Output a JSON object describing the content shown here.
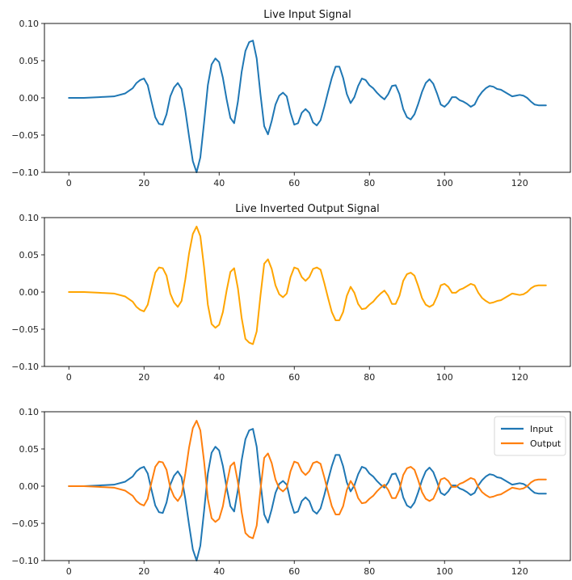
{
  "chart_data": [
    {
      "type": "line",
      "title": "Live Input Signal",
      "xlabel": "",
      "ylabel": "",
      "xlim": [
        -6.5,
        133.5
      ],
      "ylim": [
        -0.1,
        0.1
      ],
      "xticks": [
        0,
        20,
        40,
        60,
        80,
        100,
        120
      ],
      "yticks": [
        0.1,
        0.05,
        0.0,
        -0.05,
        -0.1
      ],
      "xtick_labels": [
        "0",
        "20",
        "40",
        "60",
        "80",
        "100",
        "120"
      ],
      "ytick_labels": [
        "0.10",
        "0.05",
        "0.00",
        "−0.05",
        "−0.10"
      ],
      "grid": false,
      "legend": null,
      "series": [
        {
          "color": "#1f77b4",
          "x": [
            0,
            4,
            8,
            12,
            15,
            17,
            18,
            19,
            20,
            21,
            22,
            23,
            24,
            25,
            26,
            27,
            28,
            29,
            30,
            31,
            32,
            33,
            34,
            35,
            36,
            37,
            38,
            39,
            40,
            41,
            42,
            43,
            44,
            45,
            46,
            47,
            48,
            49,
            50,
            51,
            52,
            53,
            54,
            55,
            56,
            57,
            58,
            59,
            60,
            61,
            62,
            63,
            64,
            65,
            66,
            67,
            68,
            69,
            70,
            71,
            72,
            73,
            74,
            75,
            76,
            77,
            78,
            79,
            80,
            81,
            82,
            83,
            84,
            85,
            86,
            87,
            88,
            89,
            90,
            91,
            92,
            93,
            94,
            95,
            96,
            97,
            98,
            99,
            100,
            101,
            102,
            103,
            104,
            105,
            106,
            107,
            108,
            109,
            110,
            111,
            112,
            113,
            114,
            115,
            116,
            117,
            118,
            119,
            120,
            121,
            122,
            123,
            124,
            125,
            126,
            127
          ],
          "y": [
            0.0,
            0.0,
            0.001,
            0.002,
            0.006,
            0.013,
            0.02,
            0.024,
            0.026,
            0.017,
            -0.005,
            -0.026,
            -0.035,
            -0.036,
            -0.022,
            0.002,
            0.014,
            0.02,
            0.012,
            -0.017,
            -0.052,
            -0.085,
            -0.1,
            -0.08,
            -0.033,
            0.017,
            0.045,
            0.053,
            0.048,
            0.027,
            -0.002,
            -0.027,
            -0.034,
            -0.005,
            0.035,
            0.063,
            0.075,
            0.077,
            0.053,
            0.005,
            -0.038,
            -0.049,
            -0.031,
            -0.009,
            0.003,
            0.007,
            0.002,
            -0.02,
            -0.036,
            -0.034,
            -0.02,
            -0.015,
            -0.02,
            -0.033,
            -0.037,
            -0.03,
            -0.012,
            0.008,
            0.027,
            0.042,
            0.042,
            0.027,
            0.005,
            -0.007,
            0.001,
            0.016,
            0.026,
            0.024,
            0.017,
            0.013,
            0.007,
            0.002,
            -0.002,
            0.005,
            0.016,
            0.017,
            0.005,
            -0.015,
            -0.026,
            -0.029,
            -0.022,
            -0.008,
            0.008,
            0.02,
            0.025,
            0.019,
            0.006,
            -0.009,
            -0.012,
            -0.007,
            0.001,
            0.001,
            -0.003,
            -0.005,
            -0.008,
            -0.012,
            -0.009,
            0.001,
            0.008,
            0.013,
            0.016,
            0.015,
            0.012,
            0.011,
            0.008,
            0.005,
            0.002,
            0.003,
            0.004,
            0.003,
            0.0,
            -0.005,
            -0.009,
            -0.01,
            -0.01,
            -0.01
          ]
        }
      ]
    },
    {
      "type": "line",
      "title": "Live Inverted Output Signal",
      "xlabel": "",
      "ylabel": "",
      "xlim": [
        -6.5,
        133.5
      ],
      "ylim": [
        -0.1,
        0.1
      ],
      "xticks": [
        0,
        20,
        40,
        60,
        80,
        100,
        120
      ],
      "yticks": [
        0.1,
        0.05,
        0.0,
        -0.05,
        -0.1
      ],
      "xtick_labels": [
        "0",
        "20",
        "40",
        "60",
        "80",
        "100",
        "120"
      ],
      "ytick_labels": [
        "0.10",
        "0.05",
        "0.00",
        "−0.05",
        "−0.10"
      ],
      "grid": false,
      "legend": null,
      "series": [
        {
          "color": "#ffa500",
          "x": [
            0,
            4,
            8,
            12,
            15,
            17,
            18,
            19,
            20,
            21,
            22,
            23,
            24,
            25,
            26,
            27,
            28,
            29,
            30,
            31,
            32,
            33,
            34,
            35,
            36,
            37,
            38,
            39,
            40,
            41,
            42,
            43,
            44,
            45,
            46,
            47,
            48,
            49,
            50,
            51,
            52,
            53,
            54,
            55,
            56,
            57,
            58,
            59,
            60,
            61,
            62,
            63,
            64,
            65,
            66,
            67,
            68,
            69,
            70,
            71,
            72,
            73,
            74,
            75,
            76,
            77,
            78,
            79,
            80,
            81,
            82,
            83,
            84,
            85,
            86,
            87,
            88,
            89,
            90,
            91,
            92,
            93,
            94,
            95,
            96,
            97,
            98,
            99,
            100,
            101,
            102,
            103,
            104,
            105,
            106,
            107,
            108,
            109,
            110,
            111,
            112,
            113,
            114,
            115,
            116,
            117,
            118,
            119,
            120,
            121,
            122,
            123,
            124,
            125,
            126,
            127
          ],
          "y": [
            0.0,
            0.0,
            -0.001,
            -0.002,
            -0.006,
            -0.013,
            -0.02,
            -0.024,
            -0.026,
            -0.017,
            0.005,
            0.026,
            0.033,
            0.032,
            0.022,
            -0.002,
            -0.014,
            -0.02,
            -0.012,
            0.017,
            0.052,
            0.078,
            0.088,
            0.075,
            0.033,
            -0.017,
            -0.043,
            -0.048,
            -0.044,
            -0.027,
            0.002,
            0.027,
            0.032,
            0.005,
            -0.035,
            -0.063,
            -0.068,
            -0.07,
            -0.053,
            -0.005,
            0.038,
            0.044,
            0.031,
            0.009,
            -0.003,
            -0.007,
            -0.002,
            0.02,
            0.033,
            0.031,
            0.02,
            0.015,
            0.02,
            0.031,
            0.033,
            0.03,
            0.012,
            -0.008,
            -0.027,
            -0.038,
            -0.038,
            -0.027,
            -0.005,
            0.007,
            -0.001,
            -0.016,
            -0.023,
            -0.022,
            -0.017,
            -0.013,
            -0.007,
            -0.002,
            0.002,
            -0.005,
            -0.016,
            -0.016,
            -0.005,
            0.015,
            0.024,
            0.026,
            0.022,
            0.008,
            -0.008,
            -0.017,
            -0.02,
            -0.017,
            -0.006,
            0.009,
            0.011,
            0.007,
            -0.001,
            -0.001,
            0.003,
            0.005,
            0.008,
            0.011,
            0.009,
            -0.001,
            -0.008,
            -0.012,
            -0.015,
            -0.014,
            -0.012,
            -0.011,
            -0.008,
            -0.005,
            -0.002,
            -0.003,
            -0.004,
            -0.003,
            0.0,
            0.005,
            0.008,
            0.009,
            0.009,
            0.009
          ]
        }
      ]
    },
    {
      "type": "line",
      "title": "",
      "xlabel": "",
      "ylabel": "",
      "xlim": [
        -6.5,
        133.5
      ],
      "ylim": [
        -0.1,
        0.1
      ],
      "xticks": [
        0,
        20,
        40,
        60,
        80,
        100,
        120
      ],
      "yticks": [
        0.1,
        0.05,
        0.0,
        -0.05,
        -0.1
      ],
      "xtick_labels": [
        "0",
        "20",
        "40",
        "60",
        "80",
        "100",
        "120"
      ],
      "ytick_labels": [
        "0.10",
        "0.05",
        "0.00",
        "−0.05",
        "−0.10"
      ],
      "grid": false,
      "legend": "top-right",
      "series": [
        {
          "name": "Input",
          "color": "#1f77b4",
          "x": [
            0,
            4,
            8,
            12,
            15,
            17,
            18,
            19,
            20,
            21,
            22,
            23,
            24,
            25,
            26,
            27,
            28,
            29,
            30,
            31,
            32,
            33,
            34,
            35,
            36,
            37,
            38,
            39,
            40,
            41,
            42,
            43,
            44,
            45,
            46,
            47,
            48,
            49,
            50,
            51,
            52,
            53,
            54,
            55,
            56,
            57,
            58,
            59,
            60,
            61,
            62,
            63,
            64,
            65,
            66,
            67,
            68,
            69,
            70,
            71,
            72,
            73,
            74,
            75,
            76,
            77,
            78,
            79,
            80,
            81,
            82,
            83,
            84,
            85,
            86,
            87,
            88,
            89,
            90,
            91,
            92,
            93,
            94,
            95,
            96,
            97,
            98,
            99,
            100,
            101,
            102,
            103,
            104,
            105,
            106,
            107,
            108,
            109,
            110,
            111,
            112,
            113,
            114,
            115,
            116,
            117,
            118,
            119,
            120,
            121,
            122,
            123,
            124,
            125,
            126,
            127
          ],
          "y": [
            0.0,
            0.0,
            0.001,
            0.002,
            0.006,
            0.013,
            0.02,
            0.024,
            0.026,
            0.017,
            -0.005,
            -0.026,
            -0.035,
            -0.036,
            -0.022,
            0.002,
            0.014,
            0.02,
            0.012,
            -0.017,
            -0.052,
            -0.085,
            -0.1,
            -0.08,
            -0.033,
            0.017,
            0.045,
            0.053,
            0.048,
            0.027,
            -0.002,
            -0.027,
            -0.034,
            -0.005,
            0.035,
            0.063,
            0.075,
            0.077,
            0.053,
            0.005,
            -0.038,
            -0.049,
            -0.031,
            -0.009,
            0.003,
            0.007,
            0.002,
            -0.02,
            -0.036,
            -0.034,
            -0.02,
            -0.015,
            -0.02,
            -0.033,
            -0.037,
            -0.03,
            -0.012,
            0.008,
            0.027,
            0.042,
            0.042,
            0.027,
            0.005,
            -0.007,
            0.001,
            0.016,
            0.026,
            0.024,
            0.017,
            0.013,
            0.007,
            0.002,
            -0.002,
            0.005,
            0.016,
            0.017,
            0.005,
            -0.015,
            -0.026,
            -0.029,
            -0.022,
            -0.008,
            0.008,
            0.02,
            0.025,
            0.019,
            0.006,
            -0.009,
            -0.012,
            -0.007,
            0.001,
            0.001,
            -0.003,
            -0.005,
            -0.008,
            -0.012,
            -0.009,
            0.001,
            0.008,
            0.013,
            0.016,
            0.015,
            0.012,
            0.011,
            0.008,
            0.005,
            0.002,
            0.003,
            0.004,
            0.003,
            0.0,
            -0.005,
            -0.009,
            -0.01,
            -0.01,
            -0.01
          ]
        },
        {
          "name": "Output",
          "color": "#ff7f0e",
          "x": [
            0,
            4,
            8,
            12,
            15,
            17,
            18,
            19,
            20,
            21,
            22,
            23,
            24,
            25,
            26,
            27,
            28,
            29,
            30,
            31,
            32,
            33,
            34,
            35,
            36,
            37,
            38,
            39,
            40,
            41,
            42,
            43,
            44,
            45,
            46,
            47,
            48,
            49,
            50,
            51,
            52,
            53,
            54,
            55,
            56,
            57,
            58,
            59,
            60,
            61,
            62,
            63,
            64,
            65,
            66,
            67,
            68,
            69,
            70,
            71,
            72,
            73,
            74,
            75,
            76,
            77,
            78,
            79,
            80,
            81,
            82,
            83,
            84,
            85,
            86,
            87,
            88,
            89,
            90,
            91,
            92,
            93,
            94,
            95,
            96,
            97,
            98,
            99,
            100,
            101,
            102,
            103,
            104,
            105,
            106,
            107,
            108,
            109,
            110,
            111,
            112,
            113,
            114,
            115,
            116,
            117,
            118,
            119,
            120,
            121,
            122,
            123,
            124,
            125,
            126,
            127
          ],
          "y": [
            0.0,
            0.0,
            -0.001,
            -0.002,
            -0.006,
            -0.013,
            -0.02,
            -0.024,
            -0.026,
            -0.017,
            0.005,
            0.026,
            0.033,
            0.032,
            0.022,
            -0.002,
            -0.014,
            -0.02,
            -0.012,
            0.017,
            0.052,
            0.078,
            0.088,
            0.075,
            0.033,
            -0.017,
            -0.043,
            -0.048,
            -0.044,
            -0.027,
            0.002,
            0.027,
            0.032,
            0.005,
            -0.035,
            -0.063,
            -0.068,
            -0.07,
            -0.053,
            -0.005,
            0.038,
            0.044,
            0.031,
            0.009,
            -0.003,
            -0.007,
            -0.002,
            0.02,
            0.033,
            0.031,
            0.02,
            0.015,
            0.02,
            0.031,
            0.033,
            0.03,
            0.012,
            -0.008,
            -0.027,
            -0.038,
            -0.038,
            -0.027,
            -0.005,
            0.007,
            -0.001,
            -0.016,
            -0.023,
            -0.022,
            -0.017,
            -0.013,
            -0.007,
            -0.002,
            0.002,
            -0.005,
            -0.016,
            -0.016,
            -0.005,
            0.015,
            0.024,
            0.026,
            0.022,
            0.008,
            -0.008,
            -0.017,
            -0.02,
            -0.017,
            -0.006,
            0.009,
            0.011,
            0.007,
            -0.001,
            -0.001,
            0.003,
            0.005,
            0.008,
            0.011,
            0.009,
            -0.001,
            -0.008,
            -0.012,
            -0.015,
            -0.014,
            -0.012,
            -0.011,
            -0.008,
            -0.005,
            -0.002,
            -0.003,
            -0.004,
            -0.003,
            0.0,
            0.005,
            0.008,
            0.009,
            0.009,
            0.009
          ]
        }
      ]
    }
  ]
}
